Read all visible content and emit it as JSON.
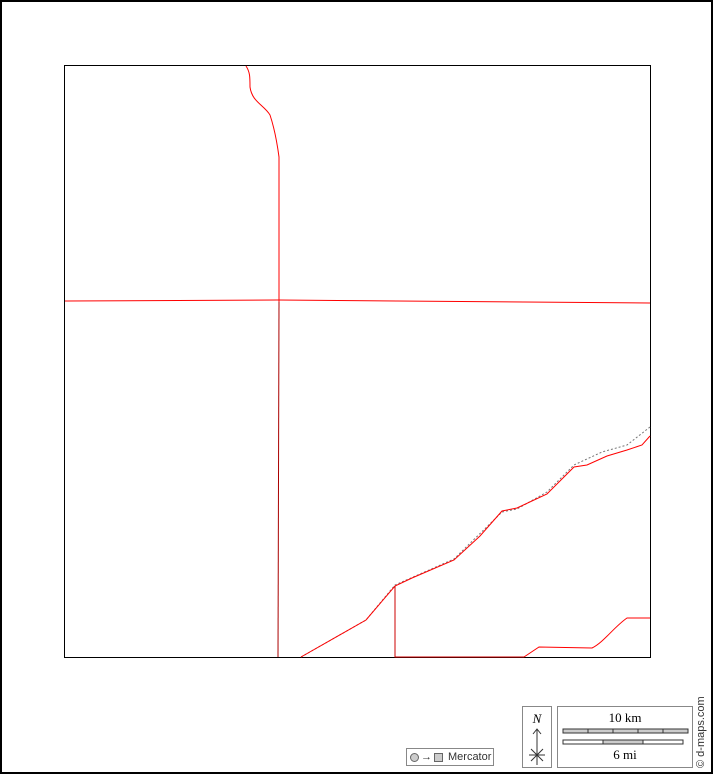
{
  "projection": {
    "label": "Mercator",
    "icon": "circle-to-square-icon"
  },
  "north_arrow": {
    "label": "N"
  },
  "scale_bar": {
    "km_label": "10 km",
    "mi_label": "6 mi"
  },
  "credit": "© d-maps.com",
  "colors": {
    "boundary": "#ff0000",
    "frame": "#000000",
    "coastline": "#777777"
  }
}
